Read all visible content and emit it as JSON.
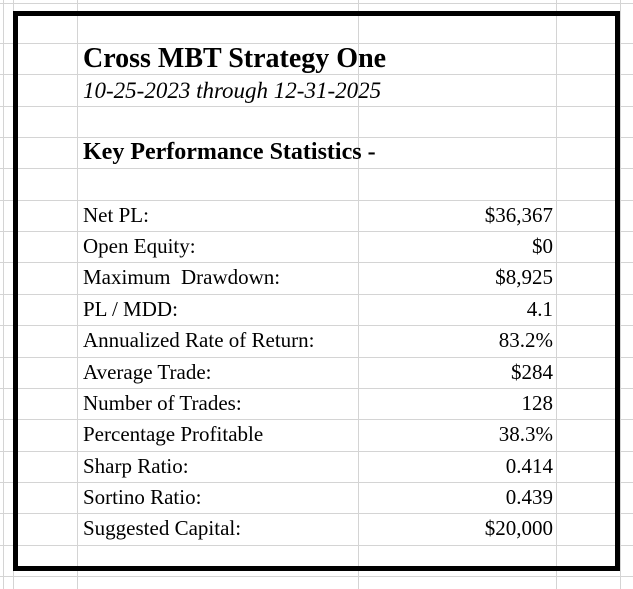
{
  "sheet": {
    "title": "Cross MBT Strategy One",
    "subtitle": "10-25-2023 through 12-31-2025",
    "section_heading": "Key Performance Statistics -",
    "stats": [
      {
        "label": "Net PL:",
        "value": "$36,367"
      },
      {
        "label": "Open Equity:",
        "value": "$0"
      },
      {
        "label": "Maximum  Drawdown:",
        "value": "$8,925"
      },
      {
        "label": "PL / MDD:",
        "value": "4.1"
      },
      {
        "label": "Annualized Rate of Return:",
        "value": "83.2%"
      },
      {
        "label": "Average Trade:",
        "value": "$284"
      },
      {
        "label": "Number of Trades:",
        "value": "128"
      },
      {
        "label": "Percentage Profitable",
        "value": "38.3%"
      },
      {
        "label": "Sharp Ratio:",
        "value": "0.414"
      },
      {
        "label": "Sortino Ratio:",
        "value": "0.439"
      },
      {
        "label": "Suggested Capital:",
        "value": "$20,000"
      }
    ],
    "colors": {
      "border": "#000000",
      "gridline": "#d4d4d4",
      "background": "#ffffff",
      "text": "#000000"
    }
  }
}
